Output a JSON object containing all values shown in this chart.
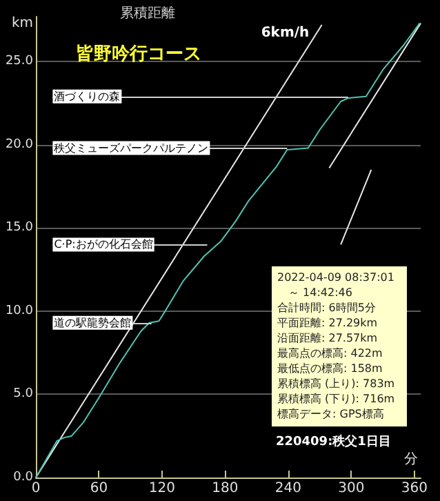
{
  "chart_data": {
    "type": "line",
    "title": "皆野吟行コース",
    "subtitle": "累積距離",
    "xlabel": "分",
    "ylabel": "km",
    "xlim": [
      0,
      366
    ],
    "xticks": [
      0,
      60,
      120,
      180,
      240,
      300,
      360
    ],
    "ylim": [
      0,
      27.7
    ],
    "yticks": [
      {
        "value": 0,
        "label": "0.0"
      },
      {
        "value": 5,
        "label": "5.0"
      },
      {
        "value": 10,
        "label": "10.0"
      },
      {
        "value": 15,
        "label": "15.0"
      },
      {
        "value": 20,
        "label": "20.0"
      },
      {
        "value": 25,
        "label": "25.0"
      }
    ],
    "grid": "y",
    "legend": false,
    "marker": "none",
    "line_style": "solid",
    "series": [
      {
        "color": "#4fc4b4",
        "x": [
          0,
          10,
          20,
          27,
          34,
          45,
          60,
          80,
          100,
          108,
          117,
          123,
          140,
          160,
          176,
          190,
          202,
          229,
          239,
          259,
          270,
          290,
          297,
          314,
          330,
          350,
          365
        ],
        "values": [
          0,
          1.1,
          2.2,
          2.4,
          2.5,
          3.3,
          4.8,
          6.9,
          8.8,
          9.3,
          9.4,
          10.0,
          11.8,
          13.3,
          14.2,
          15.4,
          16.6,
          18.7,
          19.7,
          19.8,
          20.9,
          22.6,
          22.8,
          22.9,
          24.5,
          26.0,
          27.3
        ]
      },
      {
        "name": "6km/h",
        "color": "#e8e8e8",
        "x": [
          0,
          272
        ],
        "values": [
          0,
          27.2
        ]
      },
      {
        "color": "#e8e8e8",
        "x": [
          279,
          366
        ],
        "values": [
          18.6,
          27.3
        ]
      },
      {
        "color": "#e8e8e8",
        "x": [
          290,
          319
        ],
        "values": [
          14.0,
          18.5
        ]
      }
    ],
    "annotations": [
      {
        "text": "酒づくりの森",
        "x": 297,
        "y": 22.9
      },
      {
        "text": "秩父ミューズパークパルテノン",
        "x": 239,
        "y": 19.8
      },
      {
        "text": "C·P:おがの化石会館",
        "x": 163,
        "y": 14.0
      },
      {
        "text": "道の駅龍勢会館",
        "x": 110,
        "y": 9.3
      },
      "2022-04-09 08:37:01",
      "　～ 14:42:46",
      "合計時間: 6時間5分",
      "平面距離: 27.29km",
      "沿面距離: 27.57km",
      "最高点の標高: 422m",
      "最低点の標高: 158m",
      "累積標高 (上り): 783m",
      "累積標高 (下り): 716m",
      "標高データ: GPS標高",
      "220409:秩父1日目"
    ]
  }
}
